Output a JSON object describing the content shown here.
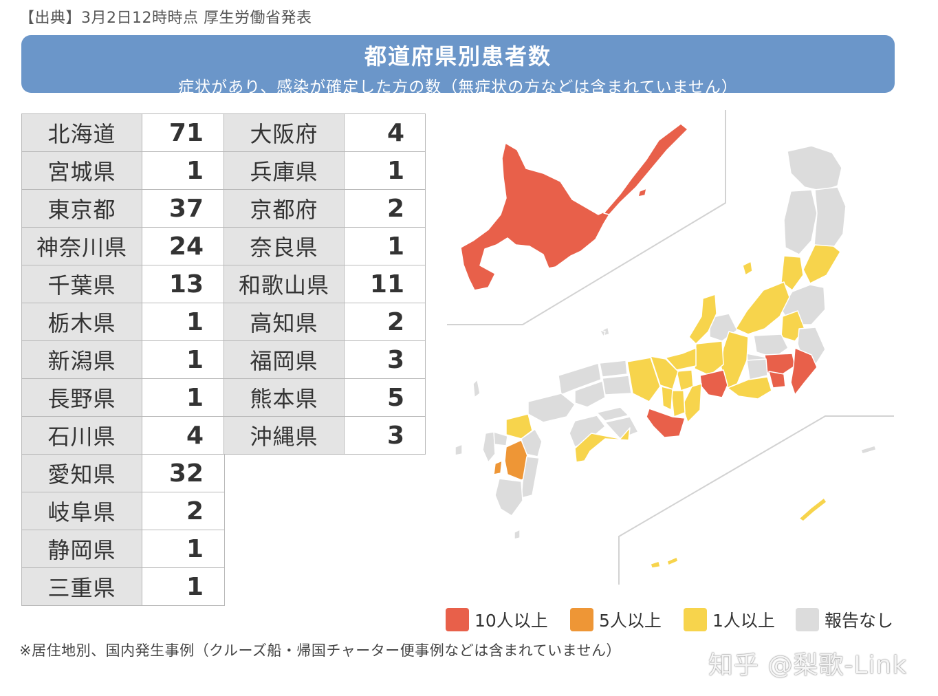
{
  "source": "【出典】3月2日12時時点 厚生労働省発表",
  "banner": {
    "title": "都道府県別患者数",
    "subtitle": "症状があり、感染が確定した方の数（無症状の方などは含まれていません）"
  },
  "table_left": [
    {
      "name": "北海道",
      "count": "71"
    },
    {
      "name": "宮城県",
      "count": "1"
    },
    {
      "name": "東京都",
      "count": "37"
    },
    {
      "name": "神奈川県",
      "count": "24"
    },
    {
      "name": "千葉県",
      "count": "13"
    },
    {
      "name": "栃木県",
      "count": "1"
    },
    {
      "name": "新潟県",
      "count": "1"
    },
    {
      "name": "長野県",
      "count": "1"
    },
    {
      "name": "石川県",
      "count": "4"
    },
    {
      "name": "愛知県",
      "count": "32"
    },
    {
      "name": "岐阜県",
      "count": "2"
    },
    {
      "name": "静岡県",
      "count": "1"
    },
    {
      "name": "三重県",
      "count": "1"
    }
  ],
  "table_right": [
    {
      "name": "大阪府",
      "count": "4"
    },
    {
      "name": "兵庫県",
      "count": "1"
    },
    {
      "name": "京都府",
      "count": "2"
    },
    {
      "name": "奈良県",
      "count": "1"
    },
    {
      "name": "和歌山県",
      "count": "11"
    },
    {
      "name": "高知県",
      "count": "2"
    },
    {
      "name": "福岡県",
      "count": "3"
    },
    {
      "name": "熊本県",
      "count": "5"
    },
    {
      "name": "沖縄県",
      "count": "3"
    }
  ],
  "legend": [
    {
      "label": "10人以上",
      "color": "#e8604a"
    },
    {
      "label": "5人以上",
      "color": "#ee9636"
    },
    {
      "label": "1人以上",
      "color": "#f7d44c"
    },
    {
      "label": "報告なし",
      "color": "#dcdcdc"
    }
  ],
  "note": "※居住地別、国内発生事例（クルーズ船・帰国チャーター便事例などは含まれていません）",
  "watermark": "知乎 @梨歌-Link"
}
